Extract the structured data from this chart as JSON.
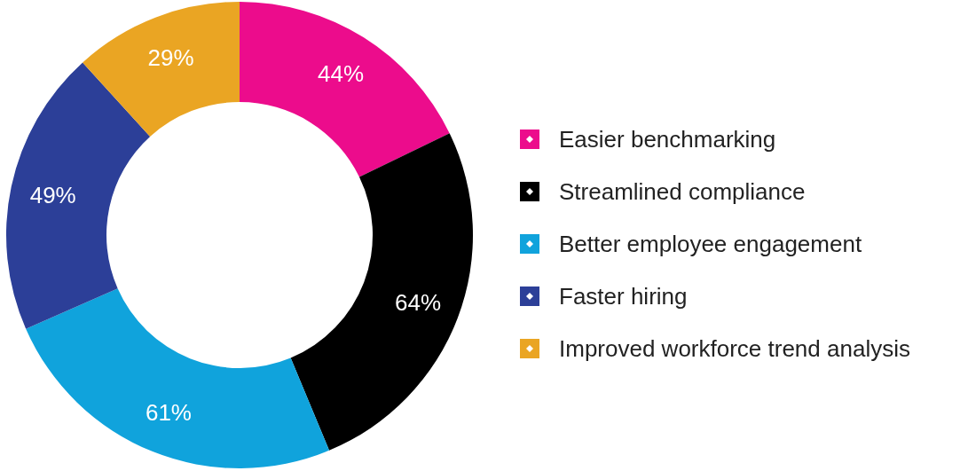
{
  "chart_data": {
    "type": "donut",
    "categories": [
      "Easier benchmarking",
      "Streamlined compliance",
      "Better employee engagement",
      "Faster hiring",
      "Improved workforce trend analysis"
    ],
    "values": [
      44,
      64,
      61,
      49,
      29
    ],
    "colors": [
      "#ec0c8c",
      "#000000",
      "#10a3dc",
      "#2c3f98",
      "#eaa523"
    ],
    "value_labels": [
      "44%",
      "64%",
      "61%",
      "49%",
      "29%"
    ],
    "legend": "right"
  }
}
